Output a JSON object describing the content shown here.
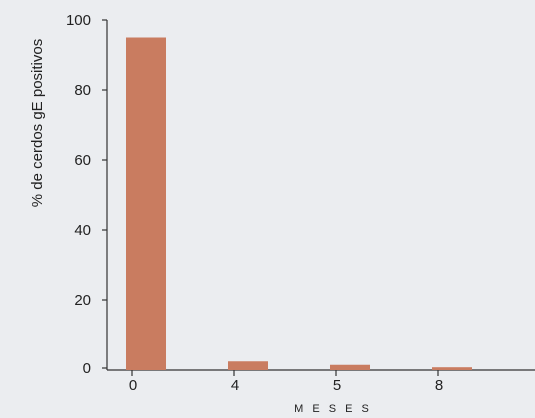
{
  "chart_data": {
    "type": "bar",
    "categories": [
      "0",
      "4",
      "5",
      "8"
    ],
    "values": [
      95,
      2.5,
      1.5,
      0.8
    ],
    "ylabel": "% de cerdos gE positivos",
    "xlabel": "M E S E S",
    "ylim": [
      0,
      100
    ],
    "yticks": [
      "0",
      "20",
      "40",
      "60",
      "80",
      "100"
    ],
    "grid": false,
    "legend": "none",
    "bar_color": "#c97c60",
    "axis_color": "#333333"
  }
}
